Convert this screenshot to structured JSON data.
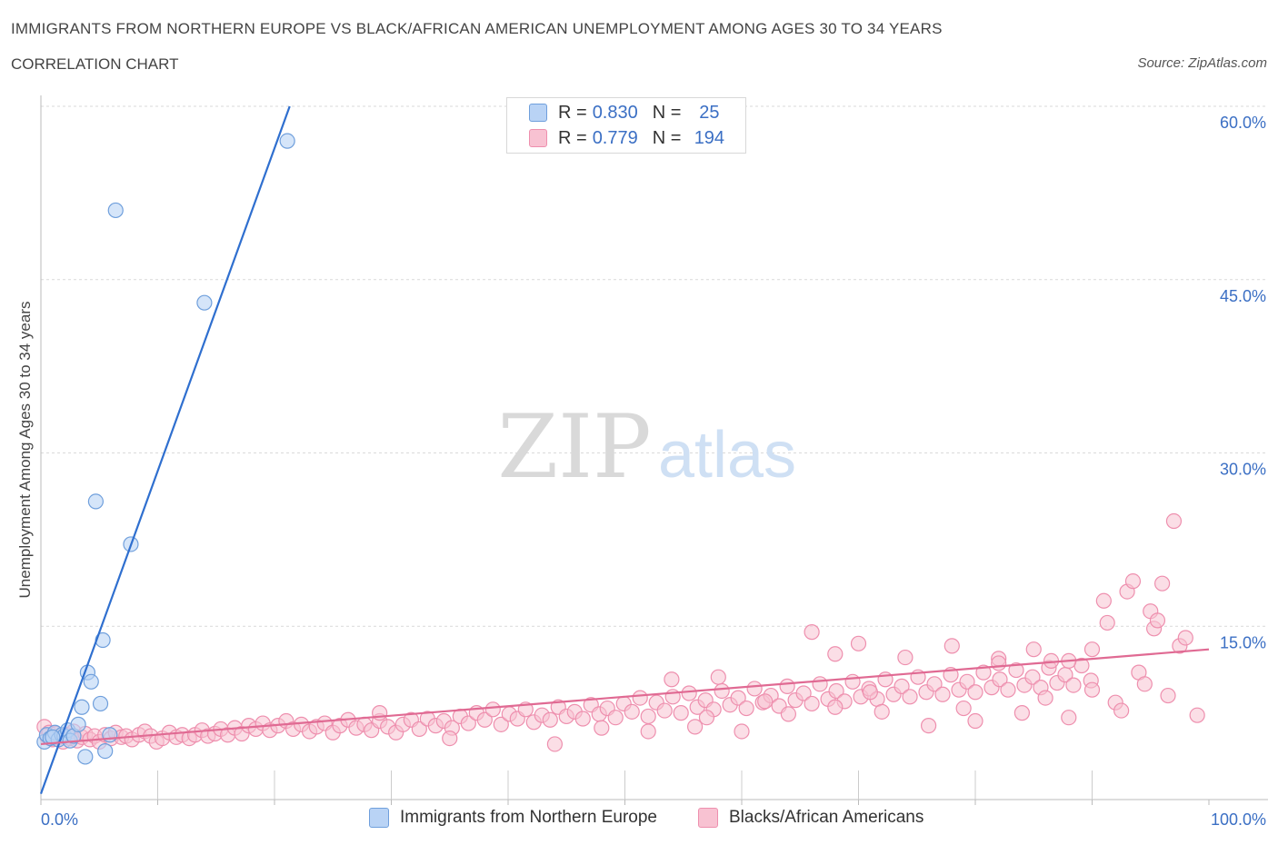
{
  "title": "IMMIGRANTS FROM NORTHERN EUROPE VS BLACK/AFRICAN AMERICAN UNEMPLOYMENT AMONG AGES 30 TO 34 YEARS",
  "subtitle": "CORRELATION CHART",
  "source": "Source: ZipAtlas.com",
  "watermark": {
    "zip": "ZIP",
    "atlas": "atlas"
  },
  "legend": {
    "row1": {
      "r_label": "R =",
      "r_value": "0.830",
      "n_label": "N =",
      "n_value": "25"
    },
    "row2": {
      "r_label": "R =",
      "r_value": "0.779",
      "n_label": "N =",
      "n_value": "194"
    }
  },
  "colors": {
    "blue_fill": "#b9d3f5",
    "blue_stroke": "#6f9fdc",
    "blue_line": "#2f6fcf",
    "pink_fill": "#f8c2d2",
    "pink_stroke": "#ee8fae",
    "pink_line": "#e06a93",
    "accent_text": "#3b6fc4"
  },
  "chart_data": {
    "type": "scatter",
    "xlabel": "",
    "ylabel": "Unemployment Among Ages 30 to 34 years",
    "xlim": [
      0,
      100
    ],
    "ylim": [
      0,
      60
    ],
    "x_tick_labels": [
      "0.0%",
      "100.0%"
    ],
    "y_ticks": [
      15,
      30,
      45,
      60
    ],
    "y_tick_labels": [
      "15.0%",
      "30.0%",
      "45.0%",
      "60.0%"
    ],
    "grid": true,
    "legend_position": "top-center",
    "series": [
      {
        "name": "Immigrants from Northern Europe",
        "trendline": [
          [
            0,
            0.5
          ],
          [
            21.3,
            60
          ]
        ],
        "points": [
          [
            0.3,
            5.0
          ],
          [
            0.5,
            5.6
          ],
          [
            0.8,
            5.3
          ],
          [
            1.2,
            5.8
          ],
          [
            1.5,
            5.2
          ],
          [
            1.8,
            5.6
          ],
          [
            2.0,
            5.5
          ],
          [
            2.3,
            6.0
          ],
          [
            2.5,
            5.1
          ],
          [
            2.8,
            5.5
          ],
          [
            3.2,
            6.5
          ],
          [
            3.5,
            8.0
          ],
          [
            3.8,
            3.7
          ],
          [
            4.0,
            11.0
          ],
          [
            4.3,
            10.2
          ],
          [
            4.7,
            25.8
          ],
          [
            5.1,
            8.3
          ],
          [
            5.3,
            13.8
          ],
          [
            5.5,
            4.2
          ],
          [
            5.9,
            5.6
          ],
          [
            6.4,
            51.0
          ],
          [
            7.7,
            22.1
          ],
          [
            14.0,
            43.0
          ],
          [
            21.1,
            57.0
          ],
          [
            1.0,
            5.4
          ]
        ]
      },
      {
        "name": "Blacks/African Americans",
        "trendline": [
          [
            0,
            4.8
          ],
          [
            100,
            13.0
          ]
        ],
        "points": [
          [
            0.3,
            6.3
          ],
          [
            0.5,
            5.5
          ],
          [
            0.7,
            5.8
          ],
          [
            1.0,
            5.2
          ],
          [
            1.3,
            5.7
          ],
          [
            1.6,
            5.4
          ],
          [
            1.9,
            5.0
          ],
          [
            2.2,
            5.6
          ],
          [
            2.5,
            5.3
          ],
          [
            2.8,
            5.9
          ],
          [
            3.1,
            5.1
          ],
          [
            3.5,
            5.4
          ],
          [
            3.8,
            5.7
          ],
          [
            4.2,
            5.2
          ],
          [
            4.6,
            5.5
          ],
          [
            5.0,
            5.0
          ],
          [
            5.5,
            5.6
          ],
          [
            6.0,
            5.3
          ],
          [
            6.4,
            5.8
          ],
          [
            6.9,
            5.4
          ],
          [
            7.3,
            5.5
          ],
          [
            7.8,
            5.2
          ],
          [
            8.4,
            5.6
          ],
          [
            8.9,
            5.9
          ],
          [
            9.4,
            5.5
          ],
          [
            9.9,
            5.0
          ],
          [
            10.4,
            5.3
          ],
          [
            11.0,
            5.8
          ],
          [
            11.6,
            5.4
          ],
          [
            12.1,
            5.6
          ],
          [
            12.7,
            5.3
          ],
          [
            13.2,
            5.6
          ],
          [
            13.8,
            6.0
          ],
          [
            14.3,
            5.5
          ],
          [
            14.9,
            5.7
          ],
          [
            15.4,
            6.1
          ],
          [
            16.0,
            5.6
          ],
          [
            16.6,
            6.2
          ],
          [
            17.2,
            5.7
          ],
          [
            17.8,
            6.4
          ],
          [
            18.4,
            6.1
          ],
          [
            19.0,
            6.6
          ],
          [
            19.6,
            6.0
          ],
          [
            20.3,
            6.4
          ],
          [
            21.0,
            6.8
          ],
          [
            21.6,
            6.1
          ],
          [
            22.3,
            6.5
          ],
          [
            23.0,
            5.9
          ],
          [
            23.6,
            6.3
          ],
          [
            24.3,
            6.6
          ],
          [
            25.0,
            5.8
          ],
          [
            25.6,
            6.4
          ],
          [
            26.3,
            6.9
          ],
          [
            27.0,
            6.2
          ],
          [
            27.7,
            6.5
          ],
          [
            28.3,
            6.0
          ],
          [
            29.0,
            6.8
          ],
          [
            29.7,
            6.3
          ],
          [
            30.4,
            5.8
          ],
          [
            31.0,
            6.5
          ],
          [
            31.7,
            6.9
          ],
          [
            32.4,
            6.1
          ],
          [
            33.1,
            7.0
          ],
          [
            33.8,
            6.4
          ],
          [
            34.5,
            6.8
          ],
          [
            35.2,
            6.2
          ],
          [
            35.9,
            7.2
          ],
          [
            36.6,
            6.6
          ],
          [
            37.3,
            7.5
          ],
          [
            38.0,
            6.9
          ],
          [
            38.7,
            7.8
          ],
          [
            39.4,
            6.5
          ],
          [
            40.1,
            7.4
          ],
          [
            40.8,
            7.0
          ],
          [
            41.5,
            7.8
          ],
          [
            42.2,
            6.7
          ],
          [
            42.9,
            7.3
          ],
          [
            43.6,
            6.9
          ],
          [
            44.3,
            8.0
          ],
          [
            45.0,
            7.2
          ],
          [
            45.7,
            7.6
          ],
          [
            46.4,
            7.0
          ],
          [
            47.1,
            8.2
          ],
          [
            47.8,
            7.4
          ],
          [
            48.5,
            7.9
          ],
          [
            49.2,
            7.1
          ],
          [
            49.9,
            8.3
          ],
          [
            50.6,
            7.6
          ],
          [
            51.3,
            8.8
          ],
          [
            52.0,
            7.2
          ],
          [
            52.7,
            8.4
          ],
          [
            53.4,
            7.7
          ],
          [
            54.1,
            8.9
          ],
          [
            54.8,
            7.5
          ],
          [
            55.5,
            9.2
          ],
          [
            56.2,
            8.0
          ],
          [
            56.9,
            8.6
          ],
          [
            57.6,
            7.8
          ],
          [
            58.3,
            9.4
          ],
          [
            59.0,
            8.2
          ],
          [
            59.7,
            8.8
          ],
          [
            60.4,
            7.9
          ],
          [
            61.1,
            9.6
          ],
          [
            61.8,
            8.4
          ],
          [
            62.5,
            9.0
          ],
          [
            63.2,
            8.1
          ],
          [
            63.9,
            9.8
          ],
          [
            64.6,
            8.6
          ],
          [
            65.3,
            9.2
          ],
          [
            66.0,
            8.3
          ],
          [
            66.7,
            10.0
          ],
          [
            67.4,
            8.7
          ],
          [
            68.1,
            9.4
          ],
          [
            68.8,
            8.5
          ],
          [
            69.5,
            10.2
          ],
          [
            70.2,
            8.9
          ],
          [
            70.9,
            9.6
          ],
          [
            71.6,
            8.7
          ],
          [
            72.3,
            10.4
          ],
          [
            73.0,
            9.1
          ],
          [
            73.7,
            9.8
          ],
          [
            74.4,
            8.9
          ],
          [
            75.1,
            10.6
          ],
          [
            75.8,
            9.3
          ],
          [
            76.5,
            10.0
          ],
          [
            77.2,
            9.1
          ],
          [
            77.9,
            10.8
          ],
          [
            78.6,
            9.5
          ],
          [
            79.3,
            10.2
          ],
          [
            80.0,
            9.3
          ],
          [
            80.7,
            11.0
          ],
          [
            81.4,
            9.7
          ],
          [
            82.1,
            10.4
          ],
          [
            82.8,
            9.5
          ],
          [
            83.5,
            11.2
          ],
          [
            84.2,
            9.9
          ],
          [
            84.9,
            10.6
          ],
          [
            85.6,
            9.7
          ],
          [
            86.3,
            11.4
          ],
          [
            87.0,
            10.1
          ],
          [
            87.7,
            10.8
          ],
          [
            88.4,
            9.9
          ],
          [
            89.1,
            11.6
          ],
          [
            89.9,
            10.3
          ],
          [
            29.0,
            7.5
          ],
          [
            35.0,
            5.3
          ],
          [
            44.0,
            4.8
          ],
          [
            48.0,
            6.2
          ],
          [
            52.0,
            5.9
          ],
          [
            56.0,
            6.3
          ],
          [
            60.0,
            5.9
          ],
          [
            64.0,
            7.4
          ],
          [
            68.0,
            8.0
          ],
          [
            72.0,
            7.6
          ],
          [
            76.0,
            6.4
          ],
          [
            80.0,
            6.8
          ],
          [
            84.0,
            7.5
          ],
          [
            88.0,
            7.1
          ],
          [
            66.0,
            14.5
          ],
          [
            68.0,
            12.6
          ],
          [
            70.0,
            13.5
          ],
          [
            74.0,
            12.3
          ],
          [
            78.0,
            13.3
          ],
          [
            82.0,
            12.2
          ],
          [
            85.0,
            13.0
          ],
          [
            88.0,
            12.0
          ],
          [
            90.0,
            13.0
          ],
          [
            91.0,
            17.2
          ],
          [
            91.3,
            15.3
          ],
          [
            92.0,
            8.4
          ],
          [
            92.5,
            7.7
          ],
          [
            93.0,
            18.0
          ],
          [
            93.5,
            18.9
          ],
          [
            94.0,
            11.0
          ],
          [
            94.5,
            10.0
          ],
          [
            95.0,
            16.3
          ],
          [
            95.3,
            14.8
          ],
          [
            95.6,
            15.5
          ],
          [
            96.0,
            18.7
          ],
          [
            96.5,
            9.0
          ],
          [
            97.0,
            24.1
          ],
          [
            97.5,
            13.3
          ],
          [
            98.0,
            14.0
          ],
          [
            99.0,
            7.3
          ],
          [
            57.0,
            7.1
          ],
          [
            62.0,
            8.5
          ],
          [
            71.0,
            9.3
          ],
          [
            79.0,
            7.9
          ],
          [
            86.0,
            8.8
          ],
          [
            90.0,
            9.5
          ],
          [
            54.0,
            10.4
          ],
          [
            58.0,
            10.6
          ],
          [
            82.0,
            11.8
          ],
          [
            86.5,
            12.0
          ]
        ]
      }
    ]
  }
}
